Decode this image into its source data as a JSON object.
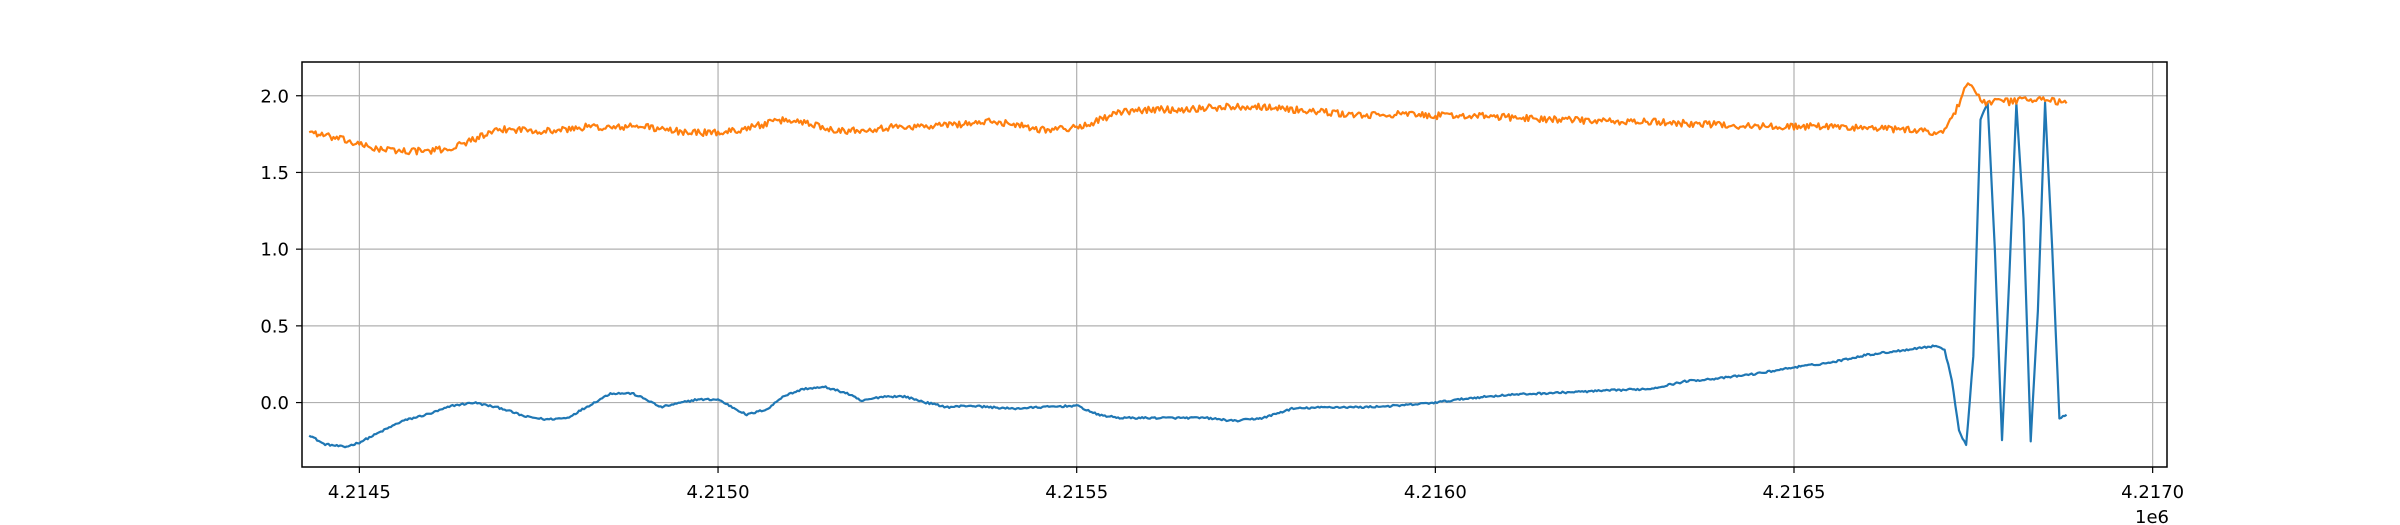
{
  "chart_data": {
    "type": "line",
    "title": "",
    "xlabel": "",
    "ylabel": "",
    "x_offset_label": "1e6",
    "xlim": [
      4.21442,
      4.21702
    ],
    "ylim": [
      -0.42,
      2.22
    ],
    "grid": true,
    "legend": "none",
    "xticks": [
      4.2145,
      4.215,
      4.2155,
      4.216,
      4.2165,
      4.217
    ],
    "xtick_labels": [
      "4.2145",
      "4.2150",
      "4.2155",
      "4.2160",
      "4.2165",
      "4.2170"
    ],
    "yticks": [
      0.0,
      0.5,
      1.0,
      1.5,
      2.0
    ],
    "ytick_labels": [
      "0.0",
      "0.5",
      "1.0",
      "1.5",
      "2.0"
    ],
    "series": [
      {
        "color": "#1f77b4",
        "noise": 0.006,
        "x": [
          4.21443,
          4.21445,
          4.21448,
          4.2145,
          4.21453,
          4.21456,
          4.2146,
          4.21463,
          4.21466,
          4.2147,
          4.21473,
          4.21476,
          4.21479,
          4.21482,
          4.21485,
          4.21488,
          4.2149,
          4.21492,
          4.21494,
          4.21497,
          4.215,
          4.21502,
          4.21504,
          4.21507,
          4.21509,
          4.21512,
          4.21515,
          4.21518,
          4.2152,
          4.21523,
          4.21526,
          4.21529,
          4.21532,
          4.21535,
          4.21538,
          4.21541,
          4.21545,
          4.2155,
          4.21553,
          4.21556,
          4.2156,
          4.21564,
          4.21568,
          4.21572,
          4.21576,
          4.2158,
          4.21585,
          4.2159,
          4.21595,
          4.216,
          4.21605,
          4.2161,
          4.21615,
          4.2162,
          4.21625,
          4.2163,
          4.21635,
          4.2164,
          4.21645,
          4.2165,
          4.21655,
          4.2166,
          4.21665,
          4.21668,
          4.2167,
          4.21671,
          4.21672,
          4.21673,
          4.21674,
          4.21675,
          4.21676,
          4.21677,
          4.21678,
          4.21679,
          4.2168,
          4.21681,
          4.21682,
          4.21683,
          4.21684,
          4.21685,
          4.21686,
          4.21687,
          4.21688
        ],
        "y": [
          -0.21,
          -0.27,
          -0.29,
          -0.26,
          -0.19,
          -0.12,
          -0.07,
          -0.02,
          0.0,
          -0.04,
          -0.09,
          -0.11,
          -0.1,
          -0.02,
          0.06,
          0.06,
          0.02,
          -0.03,
          -0.01,
          0.02,
          0.02,
          -0.03,
          -0.08,
          -0.04,
          0.04,
          0.09,
          0.1,
          0.06,
          0.01,
          0.04,
          0.04,
          0.0,
          -0.03,
          -0.02,
          -0.03,
          -0.04,
          -0.03,
          -0.02,
          -0.08,
          -0.1,
          -0.1,
          -0.1,
          -0.1,
          -0.12,
          -0.1,
          -0.04,
          -0.03,
          -0.03,
          -0.02,
          0.0,
          0.03,
          0.05,
          0.06,
          0.07,
          0.08,
          0.09,
          0.14,
          0.16,
          0.19,
          0.23,
          0.26,
          0.31,
          0.34,
          0.36,
          0.37,
          0.34,
          0.15,
          -0.18,
          -0.28,
          0.3,
          1.85,
          1.95,
          1.0,
          -0.24,
          0.8,
          1.95,
          1.2,
          -0.25,
          0.6,
          1.95,
          1.0,
          -0.1,
          -0.08
        ]
      },
      {
        "color": "#ff7f0e",
        "noise": 0.022,
        "x": [
          4.21443,
          4.21445,
          4.21448,
          4.2145,
          4.21453,
          4.21456,
          4.2146,
          4.21463,
          4.21466,
          4.2147,
          4.21473,
          4.21476,
          4.21479,
          4.21482,
          4.21485,
          4.21488,
          4.2149,
          4.21492,
          4.21494,
          4.21497,
          4.215,
          4.21502,
          4.21504,
          4.21507,
          4.21509,
          4.21512,
          4.21515,
          4.21518,
          4.2152,
          4.21523,
          4.21526,
          4.21529,
          4.21532,
          4.21535,
          4.21538,
          4.21541,
          4.21545,
          4.2155,
          4.21553,
          4.21556,
          4.2156,
          4.21564,
          4.21568,
          4.21572,
          4.21576,
          4.2158,
          4.21585,
          4.2159,
          4.21595,
          4.216,
          4.21605,
          4.2161,
          4.21615,
          4.2162,
          4.21625,
          4.2163,
          4.21635,
          4.2164,
          4.21645,
          4.2165,
          4.21655,
          4.2166,
          4.21665,
          4.21668,
          4.2167,
          4.21671,
          4.21672,
          4.21673,
          4.21674,
          4.21675,
          4.21676,
          4.21677,
          4.21678,
          4.21679,
          4.2168,
          4.21681,
          4.21682,
          4.21683,
          4.21684,
          4.21685,
          4.21686,
          4.21687,
          4.21688
        ],
        "y": [
          1.77,
          1.74,
          1.71,
          1.68,
          1.65,
          1.64,
          1.64,
          1.66,
          1.72,
          1.78,
          1.78,
          1.77,
          1.78,
          1.8,
          1.79,
          1.8,
          1.8,
          1.78,
          1.77,
          1.76,
          1.76,
          1.77,
          1.79,
          1.82,
          1.84,
          1.83,
          1.79,
          1.77,
          1.78,
          1.79,
          1.8,
          1.8,
          1.81,
          1.82,
          1.83,
          1.82,
          1.78,
          1.79,
          1.84,
          1.89,
          1.91,
          1.91,
          1.92,
          1.93,
          1.93,
          1.91,
          1.89,
          1.87,
          1.88,
          1.87,
          1.87,
          1.86,
          1.85,
          1.84,
          1.83,
          1.83,
          1.82,
          1.81,
          1.8,
          1.8,
          1.8,
          1.79,
          1.78,
          1.77,
          1.76,
          1.78,
          1.85,
          1.95,
          2.08,
          2.05,
          1.97,
          1.95,
          1.96,
          1.97,
          1.96,
          1.97,
          1.98,
          1.97,
          1.97,
          1.98,
          1.97,
          1.96,
          1.95
        ]
      }
    ]
  }
}
